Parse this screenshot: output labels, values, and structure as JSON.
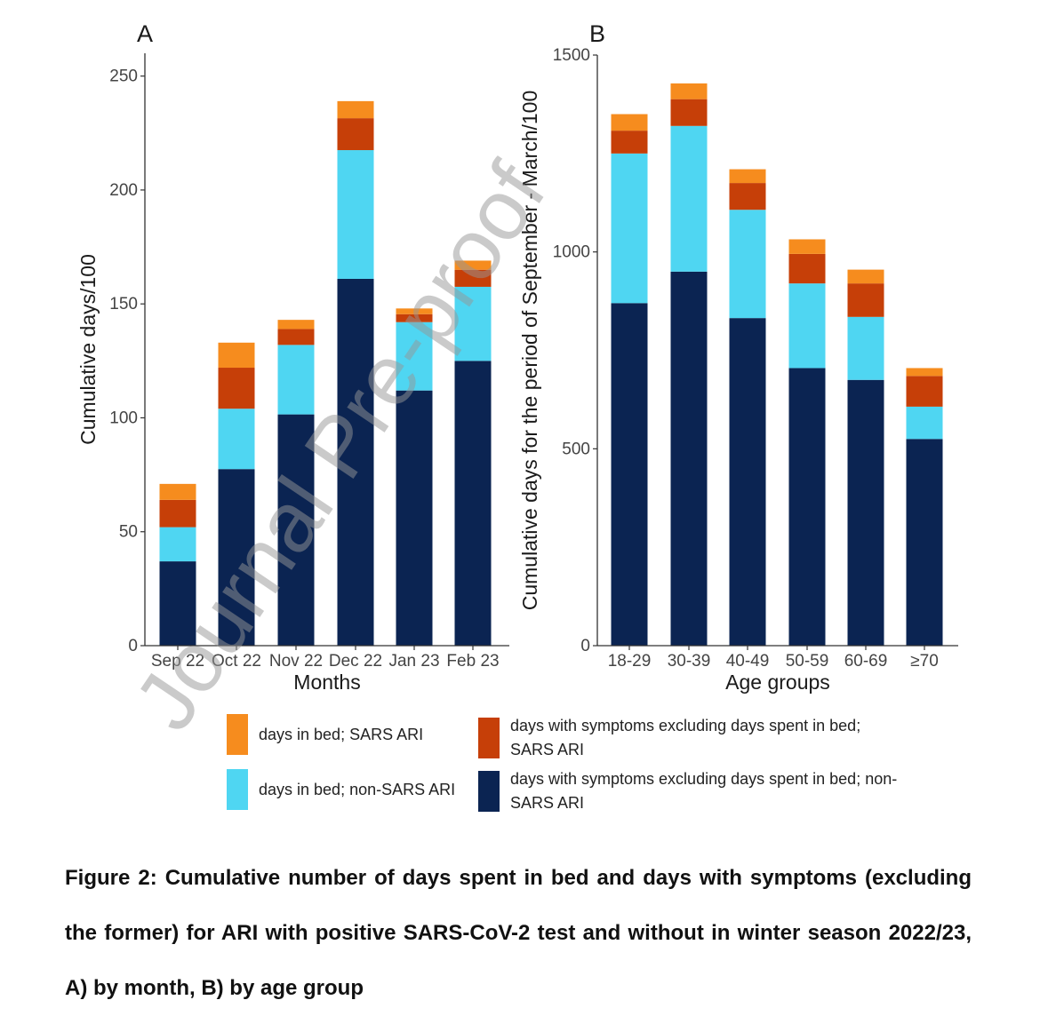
{
  "colors": {
    "nonsars_symptoms": "#0b2452",
    "nonsars_bed": "#4fd6f2",
    "sars_symptoms": "#c63f08",
    "sars_bed": "#f68c1e"
  },
  "chart_data": [
    {
      "panel": "A",
      "type": "bar",
      "stacked": true,
      "xlabel": "Months",
      "ylabel": "Cumulative days/100",
      "ylim": [
        0,
        260
      ],
      "yticks": [
        0,
        50,
        100,
        150,
        200,
        250
      ],
      "categories": [
        "Sep 22",
        "Oct 22",
        "Nov 22",
        "Dec 22",
        "Jan 23",
        "Feb 23"
      ],
      "series": [
        {
          "name": "days with symptoms excluding days spent in bed; non-SARS ARI",
          "key": "nonsars_symptoms",
          "values": [
            37,
            77.5,
            101.5,
            161,
            112,
            125
          ]
        },
        {
          "name": "days in bed; non-SARS ARI",
          "key": "nonsars_bed",
          "values": [
            15,
            26.5,
            30.5,
            56.5,
            30,
            32.5
          ]
        },
        {
          "name": "days with symptoms excluding days spent in bed; SARS ARI",
          "key": "sars_symptoms",
          "values": [
            12,
            18,
            7,
            14,
            3.5,
            7.5
          ]
        },
        {
          "name": "days in bed; SARS ARI",
          "key": "sars_bed",
          "values": [
            7,
            11,
            4,
            7.5,
            2.5,
            4
          ]
        }
      ],
      "grid": false
    },
    {
      "panel": "B",
      "type": "bar",
      "stacked": true,
      "xlabel": "Age groups",
      "ylabel": "Cumulative days for the period of September - March/100",
      "ylim": [
        0,
        1500
      ],
      "yticks": [
        0,
        500,
        1000,
        1500
      ],
      "categories": [
        "18-29",
        "30-39",
        "40-49",
        "50-59",
        "60-69",
        "≥70"
      ],
      "series": [
        {
          "name": "days with symptoms excluding days spent in bed; non-SARS ARI",
          "key": "nonsars_symptoms",
          "values": [
            870,
            950,
            832,
            705,
            675,
            525
          ]
        },
        {
          "name": "days in bed; non-SARS ARI",
          "key": "nonsars_bed",
          "values": [
            380,
            370,
            275,
            215,
            160,
            82
          ]
        },
        {
          "name": "days with symptoms excluding days spent in bed; SARS ARI",
          "key": "sars_symptoms",
          "values": [
            58,
            68,
            68,
            75,
            85,
            78
          ]
        },
        {
          "name": "days in bed; SARS ARI",
          "key": "sars_bed",
          "values": [
            42,
            40,
            35,
            37,
            35,
            20
          ]
        }
      ],
      "grid": false
    }
  ],
  "legend": {
    "items": [
      {
        "key": "sars_bed",
        "label": "days in bed; SARS ARI"
      },
      {
        "key": "sars_symptoms",
        "label": "days with symptoms excluding days spent in bed; SARS ARI"
      },
      {
        "key": "nonsars_bed",
        "label": "days in bed; non-SARS ARI"
      },
      {
        "key": "nonsars_symptoms",
        "label": "days with symptoms excluding days spent in bed; non-SARS ARI"
      }
    ]
  },
  "caption": "Figure 2: Cumulative number of days spent in bed and days with symptoms (excluding the former) for ARI with positive SARS-CoV-2 test and without in winter season 2022/23, A) by month, B) by age group",
  "watermark": "Journal Pre-proof"
}
